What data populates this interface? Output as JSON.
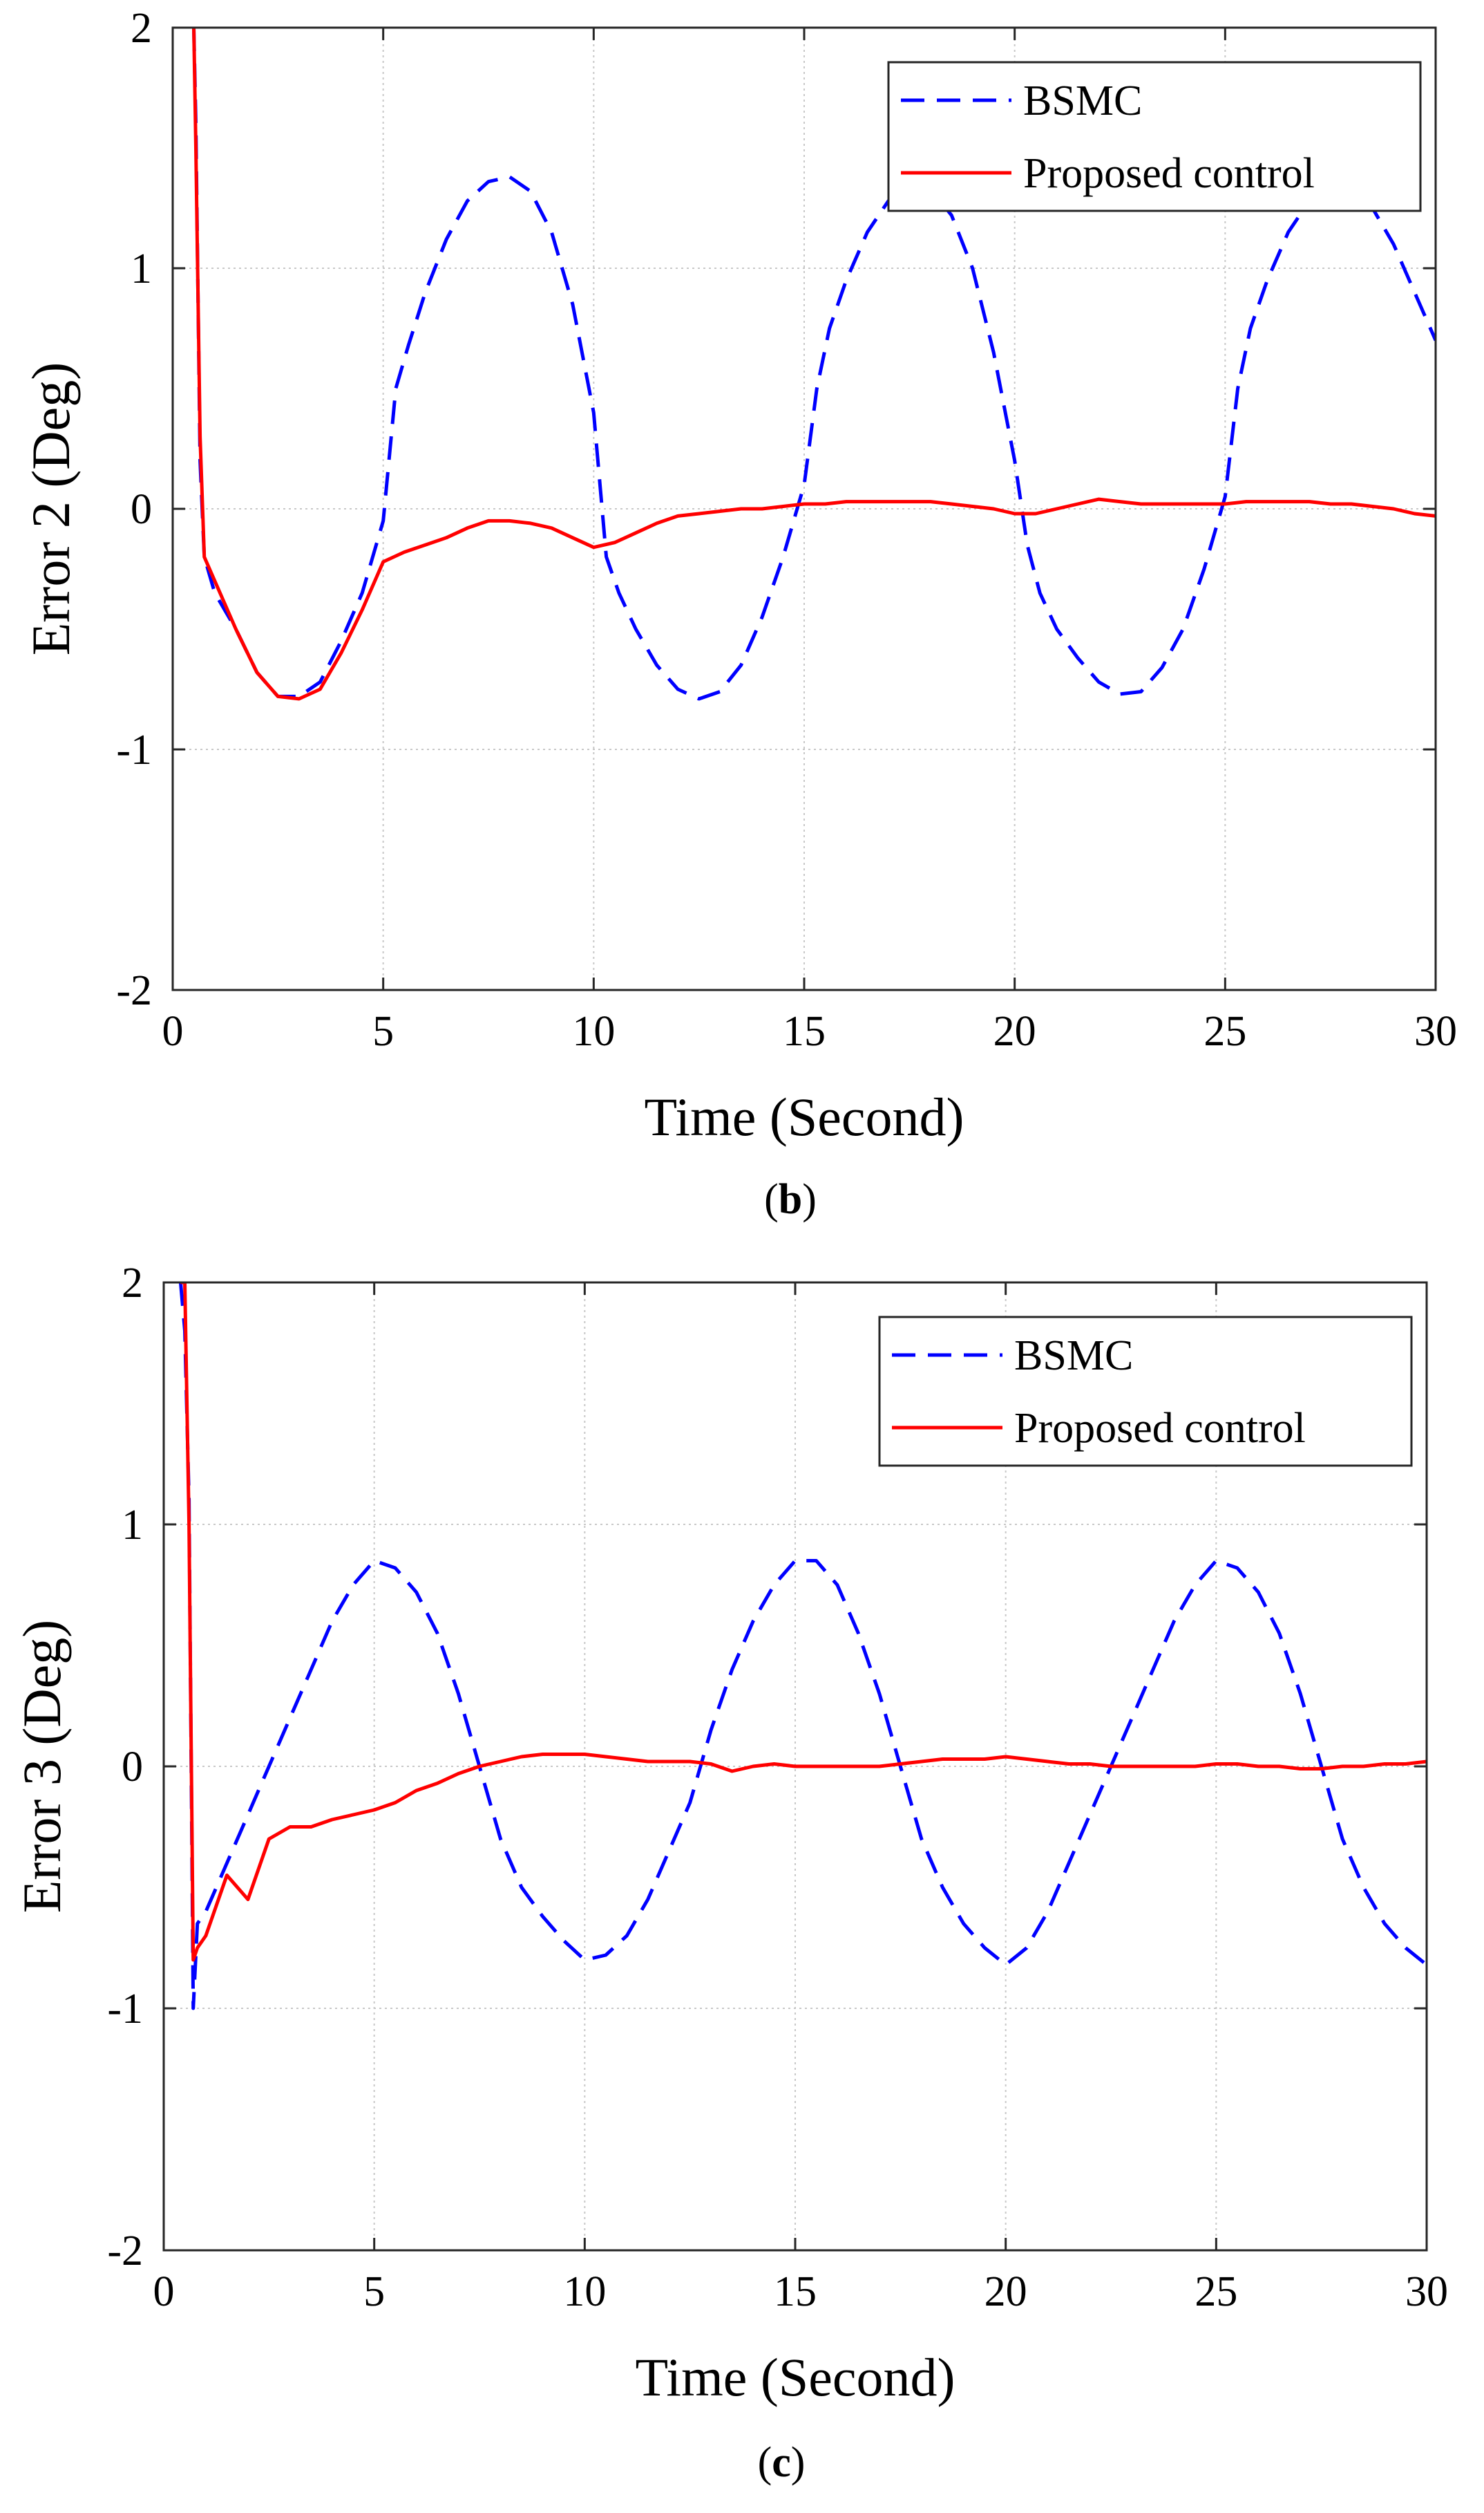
{
  "chart_data": [
    {
      "id": "b",
      "type": "line",
      "caption": "b",
      "xlabel": "Time (Second)",
      "ylabel": "Error 2 (Deg)",
      "xlim": [
        0,
        30
      ],
      "ylim": [
        -2,
        2
      ],
      "xticks": [
        0,
        5,
        10,
        15,
        20,
        25,
        30
      ],
      "yticks": [
        -2,
        -1,
        0,
        1,
        2
      ],
      "grid": true,
      "legend_position": "top-right",
      "series": [
        {
          "name": "BSMC",
          "style": "dashed",
          "color": "#0000ff",
          "x": [
            0.5,
            0.55,
            0.65,
            0.75,
            1.0,
            1.5,
            2.0,
            2.5,
            3.0,
            3.5,
            4.0,
            4.5,
            5.0,
            5.3,
            5.6,
            6.0,
            6.5,
            7.0,
            7.5,
            8.0,
            8.5,
            9.0,
            9.5,
            10.0,
            10.3,
            10.6,
            11.0,
            11.5,
            12.0,
            12.5,
            13.0,
            13.5,
            14.0,
            14.5,
            15.0,
            15.3,
            15.6,
            16.0,
            16.5,
            17.0,
            17.5,
            18.0,
            18.5,
            19.0,
            19.5,
            20.0,
            20.3,
            20.6,
            21.0,
            21.5,
            22.0,
            22.5,
            23.0,
            23.5,
            24.0,
            24.5,
            25.0,
            25.3,
            25.6,
            26.0,
            26.5,
            27.0,
            27.5,
            28.0,
            28.5,
            29.0,
            29.5,
            30.0
          ],
          "y": [
            2.0,
            1.6,
            0.2,
            -0.2,
            -0.35,
            -0.5,
            -0.68,
            -0.78,
            -0.78,
            -0.72,
            -0.55,
            -0.35,
            -0.05,
            0.5,
            0.68,
            0.9,
            1.12,
            1.28,
            1.36,
            1.38,
            1.32,
            1.15,
            0.85,
            0.4,
            -0.2,
            -0.35,
            -0.5,
            -0.65,
            -0.75,
            -0.79,
            -0.76,
            -0.65,
            -0.45,
            -0.2,
            0.1,
            0.5,
            0.75,
            0.95,
            1.15,
            1.28,
            1.34,
            1.33,
            1.22,
            1.0,
            0.65,
            0.2,
            -0.15,
            -0.35,
            -0.5,
            -0.62,
            -0.72,
            -0.77,
            -0.76,
            -0.66,
            -0.5,
            -0.25,
            0.05,
            0.5,
            0.75,
            0.95,
            1.15,
            1.28,
            1.34,
            1.33,
            1.25,
            1.1,
            0.9,
            0.7
          ]
        },
        {
          "name": "Proposed control",
          "style": "solid",
          "color": "#ff0000",
          "x": [
            0.5,
            0.55,
            0.65,
            0.75,
            1.0,
            1.5,
            2.0,
            2.5,
            3.0,
            3.5,
            4.0,
            4.5,
            5.0,
            5.5,
            6.0,
            6.5,
            7.0,
            7.5,
            8.0,
            8.5,
            9.0,
            9.5,
            10.0,
            10.5,
            11.0,
            11.5,
            12.0,
            12.5,
            13.0,
            13.5,
            14.0,
            14.5,
            15.0,
            15.5,
            16.0,
            16.5,
            17.0,
            17.5,
            18.0,
            18.5,
            19.0,
            19.5,
            20.0,
            20.5,
            21.0,
            21.5,
            22.0,
            22.5,
            23.0,
            23.5,
            24.0,
            24.5,
            25.0,
            25.5,
            26.0,
            26.5,
            27.0,
            27.5,
            28.0,
            28.5,
            29.0,
            29.5,
            30.0
          ],
          "y": [
            2.0,
            1.5,
            0.3,
            -0.2,
            -0.3,
            -0.5,
            -0.68,
            -0.78,
            -0.79,
            -0.75,
            -0.6,
            -0.42,
            -0.22,
            -0.18,
            -0.15,
            -0.12,
            -0.08,
            -0.05,
            -0.05,
            -0.06,
            -0.08,
            -0.12,
            -0.16,
            -0.14,
            -0.1,
            -0.06,
            -0.03,
            -0.02,
            -0.01,
            0.0,
            0.0,
            0.01,
            0.02,
            0.02,
            0.03,
            0.03,
            0.03,
            0.03,
            0.03,
            0.02,
            0.01,
            0.0,
            -0.02,
            -0.02,
            0.0,
            0.02,
            0.04,
            0.03,
            0.02,
            0.02,
            0.02,
            0.02,
            0.02,
            0.03,
            0.03,
            0.03,
            0.03,
            0.02,
            0.02,
            0.01,
            0.0,
            -0.02,
            -0.03
          ]
        }
      ]
    },
    {
      "id": "c",
      "type": "line",
      "caption": "c",
      "xlabel": "Time (Second)",
      "ylabel": "Error 3 (Deg)",
      "xlim": [
        0,
        30
      ],
      "ylim": [
        -2,
        2
      ],
      "xticks": [
        0,
        5,
        10,
        15,
        20,
        25,
        30
      ],
      "yticks": [
        -2,
        -1,
        0,
        1,
        2
      ],
      "grid": true,
      "legend_position": "top-right",
      "series": [
        {
          "name": "BSMC",
          "style": "dashed",
          "color": "#0000ff",
          "x": [
            0.4,
            0.5,
            0.6,
            0.7,
            0.8,
            1.0,
            1.5,
            2.0,
            2.5,
            3.0,
            3.5,
            4.0,
            4.5,
            5.0,
            5.5,
            6.0,
            6.5,
            7.0,
            7.5,
            8.0,
            8.5,
            9.0,
            9.5,
            10.0,
            10.5,
            11.0,
            11.5,
            12.0,
            12.5,
            13.0,
            13.5,
            14.0,
            14.5,
            15.0,
            15.5,
            16.0,
            16.5,
            17.0,
            17.5,
            18.0,
            18.5,
            19.0,
            19.5,
            20.0,
            20.5,
            21.0,
            21.5,
            22.0,
            22.5,
            23.0,
            23.5,
            24.0,
            24.5,
            25.0,
            25.5,
            26.0,
            26.5,
            27.0,
            27.5,
            28.0,
            28.5,
            29.0,
            29.5,
            30.0
          ],
          "y": [
            2.0,
            1.8,
            1.1,
            -1.0,
            -0.65,
            -0.6,
            -0.4,
            -0.2,
            0.0,
            0.2,
            0.4,
            0.6,
            0.75,
            0.85,
            0.82,
            0.72,
            0.55,
            0.3,
            0.0,
            -0.3,
            -0.5,
            -0.62,
            -0.72,
            -0.8,
            -0.78,
            -0.7,
            -0.55,
            -0.35,
            -0.15,
            0.15,
            0.4,
            0.6,
            0.75,
            0.85,
            0.85,
            0.75,
            0.55,
            0.3,
            0.0,
            -0.3,
            -0.5,
            -0.65,
            -0.75,
            -0.82,
            -0.75,
            -0.6,
            -0.4,
            -0.2,
            0.0,
            0.2,
            0.4,
            0.6,
            0.75,
            0.85,
            0.82,
            0.72,
            0.55,
            0.3,
            0.0,
            -0.3,
            -0.5,
            -0.65,
            -0.75,
            -0.82
          ]
        },
        {
          "name": "Proposed control",
          "style": "solid",
          "color": "#ff0000",
          "x": [
            0.4,
            0.5,
            0.6,
            0.7,
            0.8,
            1.0,
            1.5,
            2.0,
            2.5,
            3.0,
            3.5,
            4.0,
            4.5,
            5.0,
            5.5,
            6.0,
            6.5,
            7.0,
            7.5,
            8.0,
            8.5,
            9.0,
            9.5,
            10.0,
            10.5,
            11.0,
            11.5,
            12.0,
            12.5,
            13.0,
            13.5,
            14.0,
            14.5,
            15.0,
            15.5,
            16.0,
            16.5,
            17.0,
            17.5,
            18.0,
            18.5,
            19.0,
            19.5,
            20.0,
            20.5,
            21.0,
            21.5,
            22.0,
            22.5,
            23.0,
            23.5,
            24.0,
            24.5,
            25.0,
            25.5,
            26.0,
            26.5,
            27.0,
            27.5,
            28.0,
            28.5,
            29.0,
            29.5,
            30.0
          ],
          "y": [
            2.0,
            2.0,
            1.0,
            -0.8,
            -0.75,
            -0.7,
            -0.45,
            -0.55,
            -0.3,
            -0.25,
            -0.25,
            -0.22,
            -0.2,
            -0.18,
            -0.15,
            -0.1,
            -0.07,
            -0.03,
            0.0,
            0.02,
            0.04,
            0.05,
            0.05,
            0.05,
            0.04,
            0.03,
            0.02,
            0.02,
            0.02,
            0.01,
            -0.02,
            0.0,
            0.01,
            0.0,
            0.0,
            0.0,
            0.0,
            0.0,
            0.01,
            0.02,
            0.03,
            0.03,
            0.03,
            0.04,
            0.03,
            0.02,
            0.01,
            0.01,
            0.0,
            0.0,
            0.0,
            0.0,
            0.0,
            0.01,
            0.01,
            0.0,
            0.0,
            -0.01,
            -0.01,
            0.0,
            0.0,
            0.01,
            0.01,
            0.02
          ]
        }
      ]
    }
  ]
}
